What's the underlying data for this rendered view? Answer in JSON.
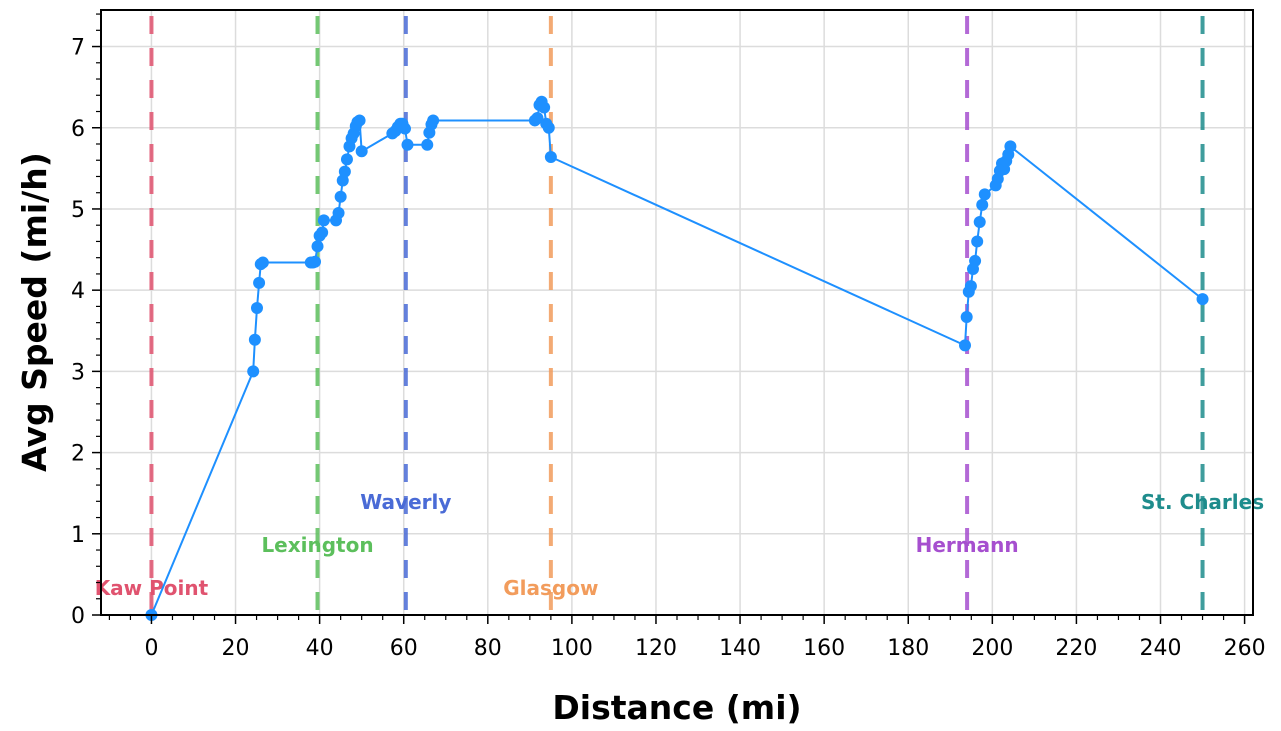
{
  "chart_data": {
    "type": "line",
    "xlabel": "Distance (mi)",
    "ylabel": "Avg Speed (mi/h)",
    "xlim": [
      -12,
      262
    ],
    "ylim": [
      0,
      7.45
    ],
    "xticks": [
      0,
      20,
      40,
      60,
      80,
      100,
      120,
      140,
      160,
      180,
      200,
      220,
      240,
      260
    ],
    "yticks": [
      0,
      1,
      2,
      3,
      4,
      5,
      6,
      7
    ],
    "grid": true,
    "line_color": "#1e90ff",
    "series": [
      {
        "x": [
          0,
          24.2,
          24.6,
          25.1,
          25.6,
          26.0,
          26.5,
          37.9,
          38.4,
          38.9,
          39.5,
          40.0,
          40.6,
          41.0,
          43.9,
          44.5,
          45.0,
          45.5,
          46.0,
          46.5,
          47.1,
          47.6,
          48.1,
          48.6,
          49.0,
          49.5,
          50.0,
          57.3,
          58.0,
          58.6,
          59.2,
          59.7,
          60.3,
          60.9,
          65.6,
          66.1,
          66.6,
          67.0,
          91.2,
          91.8,
          92.3,
          92.8,
          93.4,
          93.9,
          94.5,
          95.0,
          193.5,
          193.9,
          194.4,
          194.9,
          195.4,
          195.9,
          196.4,
          197.0,
          197.6,
          198.2,
          200.8,
          201.3,
          201.8,
          202.3,
          202.8,
          203.3,
          203.8,
          204.3,
          250.0
        ],
        "y": [
          0,
          3.0,
          3.39,
          3.78,
          4.09,
          4.32,
          4.34,
          4.34,
          4.34,
          4.35,
          4.54,
          4.67,
          4.71,
          4.86,
          4.86,
          4.95,
          5.15,
          5.35,
          5.46,
          5.61,
          5.77,
          5.87,
          5.93,
          6.02,
          6.07,
          6.09,
          5.71,
          5.93,
          5.96,
          6.01,
          6.05,
          6.05,
          5.99,
          5.79,
          5.79,
          5.94,
          6.04,
          6.09,
          6.09,
          6.12,
          6.28,
          6.32,
          6.25,
          6.05,
          6.0,
          5.64,
          3.32,
          3.67,
          3.98,
          4.05,
          4.26,
          4.36,
          4.6,
          4.84,
          5.05,
          5.18,
          5.29,
          5.37,
          5.47,
          5.56,
          5.49,
          5.59,
          5.67,
          5.77,
          3.89
        ]
      }
    ],
    "annotations": [
      {
        "x": 0,
        "label": "Kaw Point",
        "color": "#e0536f",
        "label_y": 0.33
      },
      {
        "x": 39.5,
        "label": "Lexington",
        "color": "#5cbf5c",
        "label_y": 0.86
      },
      {
        "x": 60.5,
        "label": "Waverly",
        "color": "#4a6bd6",
        "label_y": 1.39
      },
      {
        "x": 95,
        "label": "Glasgow",
        "color": "#f29c5c",
        "label_y": 0.33
      },
      {
        "x": 194,
        "label": "Hermann",
        "color": "#a64fcf",
        "label_y": 0.86
      },
      {
        "x": 250,
        "label": "St. Charles",
        "color": "#1e8c8c",
        "label_y": 1.39
      }
    ]
  }
}
